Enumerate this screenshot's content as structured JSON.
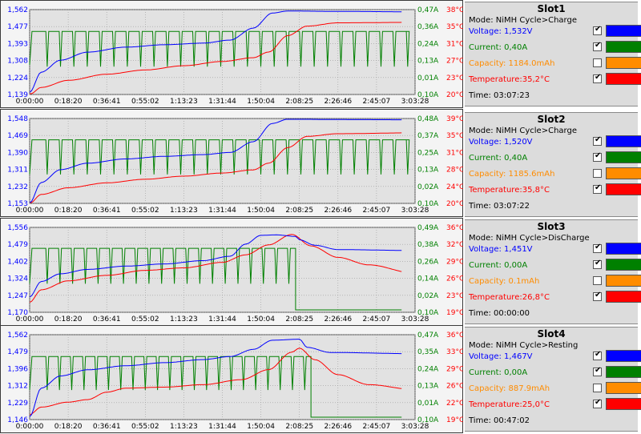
{
  "time_ticks": [
    "0:00:00",
    "0:18:20",
    "0:36:41",
    "0:55:02",
    "1:13:23",
    "1:31:44",
    "1:50:04",
    "2:08:25",
    "2:26:46",
    "2:45:07",
    "3:03:28"
  ],
  "series_colors": {
    "voltage": "#0000ff",
    "current": "#008000",
    "capacity": "#ff8c00",
    "temperature": "#ff0000"
  },
  "legend_icons": [
    "check-icon"
  ],
  "slots": [
    {
      "title": "Slot1",
      "mode": "Mode: NiMH Cycle>Charge",
      "voltage": "Voltage: 1,532V",
      "current": "Current: 0,40A",
      "capacity": "Capacity: 1184.0mAh",
      "temperature": "Temperature:35,2°C",
      "time": "Time: 03:07:23",
      "checks": {
        "voltage": true,
        "current": true,
        "capacity": false,
        "temperature": true
      },
      "chart": {
        "voltage_ticks": [
          "1,562",
          "1,477",
          "1,393",
          "1,308",
          "1,224",
          "1,139"
        ],
        "current_ticks": [
          "0,47A",
          "0,36A",
          "0,24A",
          "0,13A",
          "0,01A",
          "0,10A"
        ],
        "temp_ticks": [
          "38°C",
          "35°C",
          "31°C",
          "27°C",
          "23°C",
          "20°C"
        ],
        "voltage": [
          [
            0,
            1.15
          ],
          [
            3,
            1.25
          ],
          [
            8,
            1.31
          ],
          [
            15,
            1.35
          ],
          [
            25,
            1.375
          ],
          [
            35,
            1.387
          ],
          [
            45,
            1.395
          ],
          [
            52,
            1.41
          ],
          [
            58,
            1.47
          ],
          [
            63,
            1.545
          ],
          [
            67,
            1.555
          ],
          [
            80,
            1.553
          ],
          [
            100,
            1.551
          ]
        ],
        "temperature": [
          [
            0,
            20
          ],
          [
            3,
            21.5
          ],
          [
            10,
            23
          ],
          [
            20,
            24.3
          ],
          [
            30,
            25.2
          ],
          [
            40,
            26.1
          ],
          [
            50,
            27
          ],
          [
            58,
            27.8
          ],
          [
            62,
            29
          ],
          [
            67,
            32.5
          ],
          [
            72,
            34.5
          ],
          [
            80,
            35.2
          ],
          [
            100,
            35.3
          ]
        ],
        "current": {
          "base": 0.35,
          "dip": 0.14,
          "count": 28,
          "start": 3,
          "end": 100,
          "stop": 100,
          "after": 0.35
        }
      }
    },
    {
      "title": "Slot2",
      "mode": "Mode: NiMH Cycle>Charge",
      "voltage": "Voltage: 1,520V",
      "current": "Current: 0,40A",
      "capacity": "Capacity: 1185.6mAh",
      "temperature": "Temperature:35,8°C",
      "time": "Time: 03:07:22",
      "checks": {
        "voltage": true,
        "current": true,
        "capacity": false,
        "temperature": true
      },
      "chart": {
        "voltage_ticks": [
          "1,548",
          "1,469",
          "1,390",
          "1,311",
          "1,232",
          "1,153"
        ],
        "current_ticks": [
          "0,48A",
          "0,37A",
          "0,25A",
          "0,13A",
          "0,02A",
          "0,10A"
        ],
        "temp_ticks": [
          "39°C",
          "35°C",
          "31°C",
          "28°C",
          "24°C",
          "20°C"
        ],
        "voltage": [
          [
            0,
            1.155
          ],
          [
            3,
            1.25
          ],
          [
            8,
            1.31
          ],
          [
            15,
            1.34
          ],
          [
            25,
            1.36
          ],
          [
            35,
            1.372
          ],
          [
            45,
            1.38
          ],
          [
            52,
            1.39
          ],
          [
            58,
            1.44
          ],
          [
            63,
            1.525
          ],
          [
            67,
            1.545
          ],
          [
            80,
            1.543
          ],
          [
            100,
            1.542
          ]
        ],
        "temperature": [
          [
            0,
            20
          ],
          [
            3,
            22
          ],
          [
            10,
            23.5
          ],
          [
            20,
            24.6
          ],
          [
            30,
            25.4
          ],
          [
            40,
            26.1
          ],
          [
            50,
            26.8
          ],
          [
            58,
            27.5
          ],
          [
            62,
            29
          ],
          [
            67,
            32.5
          ],
          [
            72,
            35
          ],
          [
            80,
            35.6
          ],
          [
            100,
            35.8
          ]
        ],
        "current": {
          "base": 0.36,
          "dip": 0.15,
          "count": 28,
          "start": 3,
          "end": 100,
          "stop": 100,
          "after": 0.36
        }
      }
    },
    {
      "title": "Slot3",
      "mode": "Mode: NiMH Cycle>DisCharge",
      "voltage": "Voltage: 1,451V",
      "current": "Current: 0,00A",
      "capacity": "Capacity: 0.1mAh",
      "temperature": "Temperature:26,8°C",
      "time": "Time: 00:00:00",
      "checks": {
        "voltage": true,
        "current": true,
        "capacity": false,
        "temperature": true
      },
      "chart": {
        "voltage_ticks": [
          "1,556",
          "1,479",
          "1,402",
          "1,324",
          "1,247",
          "1,170"
        ],
        "current_ticks": [
          "0,49A",
          "0,38A",
          "0,26A",
          "0,14A",
          "0,02A",
          "0,10A"
        ],
        "temp_ticks": [
          "36°C",
          "32°C",
          "29°C",
          "26°C",
          "23°C",
          "19°C"
        ],
        "voltage": [
          [
            0,
            1.24
          ],
          [
            3,
            1.31
          ],
          [
            8,
            1.345
          ],
          [
            15,
            1.365
          ],
          [
            25,
            1.38
          ],
          [
            35,
            1.39
          ],
          [
            45,
            1.405
          ],
          [
            52,
            1.425
          ],
          [
            56,
            1.48
          ],
          [
            60,
            1.52
          ],
          [
            64,
            1.522
          ],
          [
            69,
            1.515
          ],
          [
            70,
            1.5
          ],
          [
            74,
            1.475
          ],
          [
            80,
            1.455
          ],
          [
            100,
            1.451
          ]
        ],
        "temperature": [
          [
            0,
            21
          ],
          [
            3,
            23.5
          ],
          [
            10,
            25.3
          ],
          [
            20,
            26.4
          ],
          [
            30,
            27.4
          ],
          [
            40,
            27.9
          ],
          [
            50,
            29
          ],
          [
            56,
            30.5
          ],
          [
            62,
            32.5
          ],
          [
            68,
            34.6
          ],
          [
            73,
            32.3
          ],
          [
            80,
            30
          ],
          [
            88,
            28.5
          ],
          [
            100,
            26.8
          ]
        ],
        "current": {
          "base": 0.37,
          "dip": 0.15,
          "count": 20,
          "start": 3,
          "end": 69,
          "stop": 69,
          "after": 0.0
        }
      }
    },
    {
      "title": "Slot4",
      "mode": "Mode: NiMH Cycle>Resting",
      "voltage": "Voltage: 1,467V",
      "current": "Current: 0,00A",
      "capacity": "Capacity: 887.9mAh",
      "temperature": "Temperature:25,0°C",
      "time": "Time: 00:47:02",
      "checks": {
        "voltage": true,
        "current": true,
        "capacity": false,
        "temperature": true
      },
      "chart": {
        "voltage_ticks": [
          "1,562",
          "1,479",
          "1,396",
          "1,312",
          "1,229",
          "1,146"
        ],
        "current_ticks": [
          "0,47A",
          "0,35A",
          "0,24A",
          "0,13A",
          "0,01A",
          "0,10A"
        ],
        "temp_ticks": [
          "36°C",
          "33°C",
          "29°C",
          "26°C",
          "22°C",
          "19°C"
        ],
        "voltage": [
          [
            0,
            1.16
          ],
          [
            3,
            1.3
          ],
          [
            8,
            1.36
          ],
          [
            15,
            1.39
          ],
          [
            25,
            1.41
          ],
          [
            35,
            1.425
          ],
          [
            45,
            1.44
          ],
          [
            52,
            1.455
          ],
          [
            58,
            1.49
          ],
          [
            63,
            1.535
          ],
          [
            70,
            1.54
          ],
          [
            72,
            1.5
          ],
          [
            78,
            1.475
          ],
          [
            100,
            1.469
          ]
        ],
        "temperature": [
          [
            0,
            20
          ],
          [
            3,
            21.5
          ],
          [
            10,
            22.5
          ],
          [
            15,
            23
          ],
          [
            20,
            24.5
          ],
          [
            25,
            25.3
          ],
          [
            35,
            25.5
          ],
          [
            45,
            26
          ],
          [
            55,
            27
          ],
          [
            62,
            29
          ],
          [
            68,
            32.5
          ],
          [
            70,
            33.3
          ],
          [
            74,
            31
          ],
          [
            80,
            28
          ],
          [
            88,
            26
          ],
          [
            100,
            25
          ]
        ],
        "current": {
          "base": 0.35,
          "dip": 0.15,
          "count": 22,
          "start": 3,
          "end": 73,
          "stop": 73,
          "after": 0.0
        }
      }
    }
  ]
}
